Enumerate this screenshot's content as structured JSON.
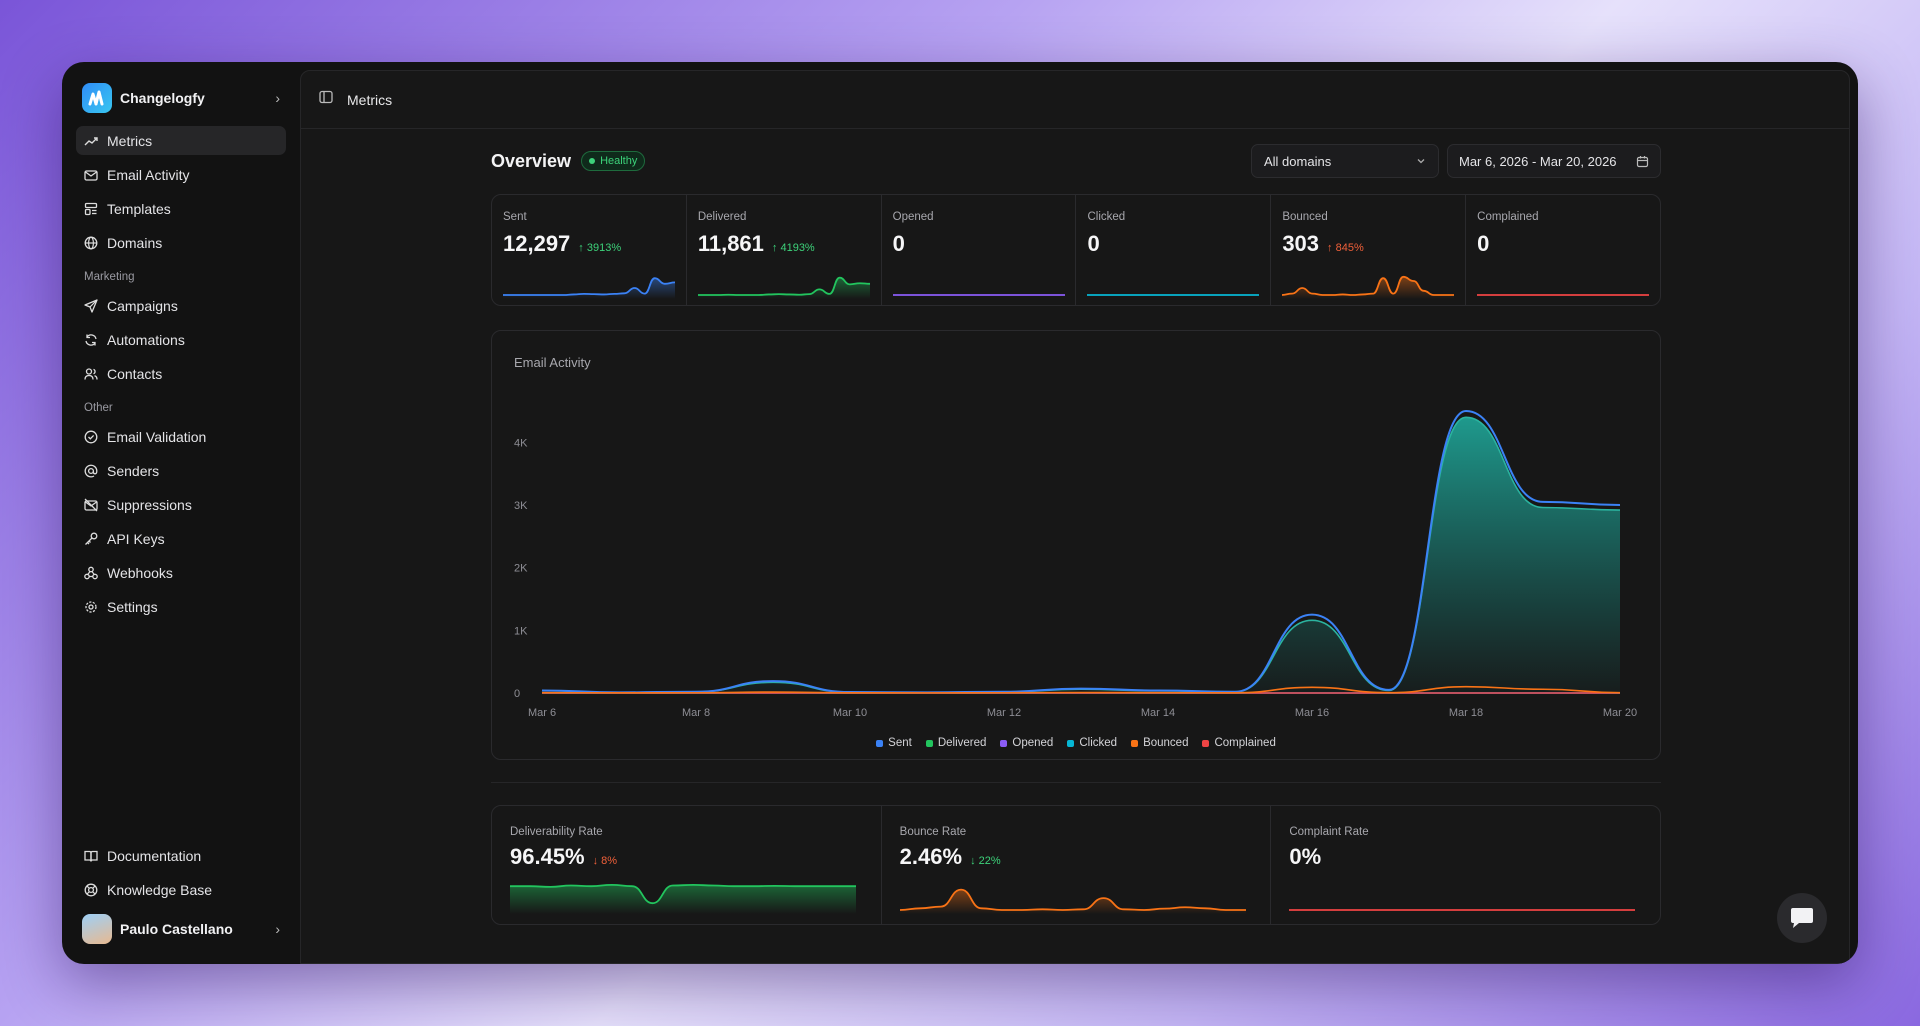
{
  "brand": {
    "name": "Changelogfy"
  },
  "nav": {
    "main": [
      {
        "label": "Metrics",
        "icon": "trending-up-icon",
        "active": true
      },
      {
        "label": "Email Activity",
        "icon": "mail-icon"
      },
      {
        "label": "Templates",
        "icon": "template-icon"
      },
      {
        "label": "Domains",
        "icon": "globe-icon"
      }
    ],
    "marketing_label": "Marketing",
    "marketing": [
      {
        "label": "Campaigns",
        "icon": "send-icon"
      },
      {
        "label": "Automations",
        "icon": "refresh-icon"
      },
      {
        "label": "Contacts",
        "icon": "users-icon"
      }
    ],
    "other_label": "Other",
    "other": [
      {
        "label": "Email Validation",
        "icon": "check-circle-icon"
      },
      {
        "label": "Senders",
        "icon": "at-icon"
      },
      {
        "label": "Suppressions",
        "icon": "mail-off-icon"
      },
      {
        "label": "API Keys",
        "icon": "key-icon"
      },
      {
        "label": "Webhooks",
        "icon": "webhook-icon"
      },
      {
        "label": "Settings",
        "icon": "gear-icon"
      }
    ],
    "bottom": [
      {
        "label": "Documentation",
        "icon": "book-icon"
      },
      {
        "label": "Knowledge Base",
        "icon": "lifebuoy-icon"
      }
    ]
  },
  "user": {
    "name": "Paulo Castellano"
  },
  "topbar": {
    "title": "Metrics"
  },
  "overview": {
    "title": "Overview",
    "status": "Healthy",
    "domain_filter": "All domains",
    "date_range": "Mar 6, 2026 - Mar 20, 2026"
  },
  "colors": {
    "sent": "#3b82f6",
    "delivered": "#22c55e",
    "opened": "#8b5cf6",
    "clicked": "#06b6d4",
    "bounced": "#f97316",
    "complained": "#ef4444"
  },
  "metrics": [
    {
      "label": "Sent",
      "value": "12,297",
      "delta": "↑ 3913%",
      "delta_class": "up-green",
      "color": "#3b82f6",
      "spark": [
        0,
        0,
        0,
        0,
        0,
        0,
        0,
        0.02,
        0.04,
        0.03,
        0.02,
        0.04,
        0.06,
        0.25,
        0.05,
        0.6,
        0.4,
        0.45
      ]
    },
    {
      "label": "Delivered",
      "value": "11,861",
      "delta": "↑ 4193%",
      "delta_class": "up-green",
      "color": "#22c55e",
      "spark": [
        0,
        0,
        0,
        0.01,
        0,
        0,
        0,
        0.02,
        0.03,
        0.02,
        0.01,
        0.03,
        0.2,
        0.04,
        0.62,
        0.38,
        0.42,
        0.4
      ]
    },
    {
      "label": "Opened",
      "value": "0",
      "delta": "",
      "delta_class": "",
      "color": "#8b5cf6",
      "spark": [
        0,
        0,
        0,
        0,
        0,
        0,
        0,
        0,
        0,
        0,
        0,
        0,
        0,
        0,
        0,
        0,
        0,
        0
      ]
    },
    {
      "label": "Clicked",
      "value": "0",
      "delta": "",
      "delta_class": "",
      "color": "#06b6d4",
      "spark": [
        0,
        0,
        0,
        0,
        0,
        0,
        0,
        0,
        0,
        0,
        0,
        0,
        0,
        0,
        0,
        0,
        0,
        0
      ]
    },
    {
      "label": "Bounced",
      "value": "303",
      "delta": "↑ 845%",
      "delta_class": "up-red",
      "color": "#f97316",
      "spark": [
        0,
        0.05,
        0.25,
        0.05,
        0,
        0,
        0.02,
        0,
        0.02,
        0.05,
        0.6,
        0.05,
        0.65,
        0.5,
        0.15,
        0,
        0,
        0
      ]
    },
    {
      "label": "Complained",
      "value": "0",
      "delta": "",
      "delta_class": "",
      "color": "#ef4444",
      "spark": [
        0,
        0,
        0,
        0,
        0,
        0,
        0,
        0,
        0,
        0,
        0,
        0,
        0,
        0,
        0,
        0,
        0,
        0
      ]
    }
  ],
  "chart_data": {
    "type": "area",
    "title": "Email Activity",
    "x": [
      "Mar 6",
      "Mar 7",
      "Mar 8",
      "Mar 9",
      "Mar 10",
      "Mar 11",
      "Mar 12",
      "Mar 13",
      "Mar 14",
      "Mar 15",
      "Mar 16",
      "Mar 17",
      "Mar 18",
      "Mar 19",
      "Mar 20"
    ],
    "x_ticks": [
      "Mar 6",
      "Mar 8",
      "Mar 10",
      "Mar 12",
      "Mar 14",
      "Mar 16",
      "Mar 18",
      "Mar 20"
    ],
    "y_ticks": [
      "0",
      "1K",
      "2K",
      "3K",
      "4K"
    ],
    "ylim": [
      0,
      4500
    ],
    "series": [
      {
        "name": "Sent",
        "color": "#3b82f6",
        "values": [
          40,
          10,
          20,
          190,
          15,
          10,
          20,
          70,
          40,
          20,
          1250,
          50,
          4500,
          3050,
          3000
        ]
      },
      {
        "name": "Delivered",
        "color": "#22c55e",
        "values": [
          38,
          8,
          18,
          170,
          12,
          8,
          18,
          60,
          35,
          18,
          1160,
          40,
          4400,
          2960,
          2920
        ]
      },
      {
        "name": "Opened",
        "color": "#8b5cf6",
        "values": [
          0,
          0,
          0,
          0,
          0,
          0,
          0,
          0,
          0,
          0,
          0,
          0,
          0,
          0,
          0
        ]
      },
      {
        "name": "Clicked",
        "color": "#06b6d4",
        "values": [
          0,
          0,
          0,
          0,
          0,
          0,
          0,
          0,
          0,
          0,
          0,
          0,
          0,
          0,
          0
        ]
      },
      {
        "name": "Bounced",
        "color": "#f97316",
        "values": [
          5,
          3,
          4,
          15,
          3,
          2,
          4,
          8,
          5,
          3,
          90,
          5,
          100,
          60,
          5
        ]
      },
      {
        "name": "Complained",
        "color": "#ef4444",
        "values": [
          0,
          0,
          0,
          0,
          0,
          0,
          0,
          0,
          0,
          0,
          0,
          0,
          0,
          0,
          0
        ]
      }
    ],
    "legend": "bottom"
  },
  "rates": [
    {
      "label": "Deliverability Rate",
      "value": "96.45%",
      "delta": "↓ 8%",
      "delta_class": "down-red",
      "color": "#22c55e",
      "spark": [
        0.7,
        0.7,
        0.68,
        0.72,
        0.7,
        0.74,
        0.7,
        0.2,
        0.72,
        0.74,
        0.72,
        0.7,
        0.7,
        0.71,
        0.7,
        0.7,
        0.7,
        0.7
      ]
    },
    {
      "label": "Bounce Rate",
      "value": "2.46%",
      "delta": "↓ 22%",
      "delta_class": "down-green",
      "color": "#f97316",
      "spark": [
        0,
        0.05,
        0.1,
        0.6,
        0.05,
        0,
        0,
        0.02,
        0,
        0.02,
        0.35,
        0.02,
        0,
        0.04,
        0.08,
        0.05,
        0,
        0
      ]
    },
    {
      "label": "Complaint Rate",
      "value": "0%",
      "delta": "",
      "delta_class": "",
      "color": "#ef4444",
      "spark": [
        0,
        0,
        0,
        0,
        0,
        0,
        0,
        0,
        0,
        0,
        0,
        0,
        0,
        0,
        0,
        0,
        0,
        0
      ]
    }
  ]
}
